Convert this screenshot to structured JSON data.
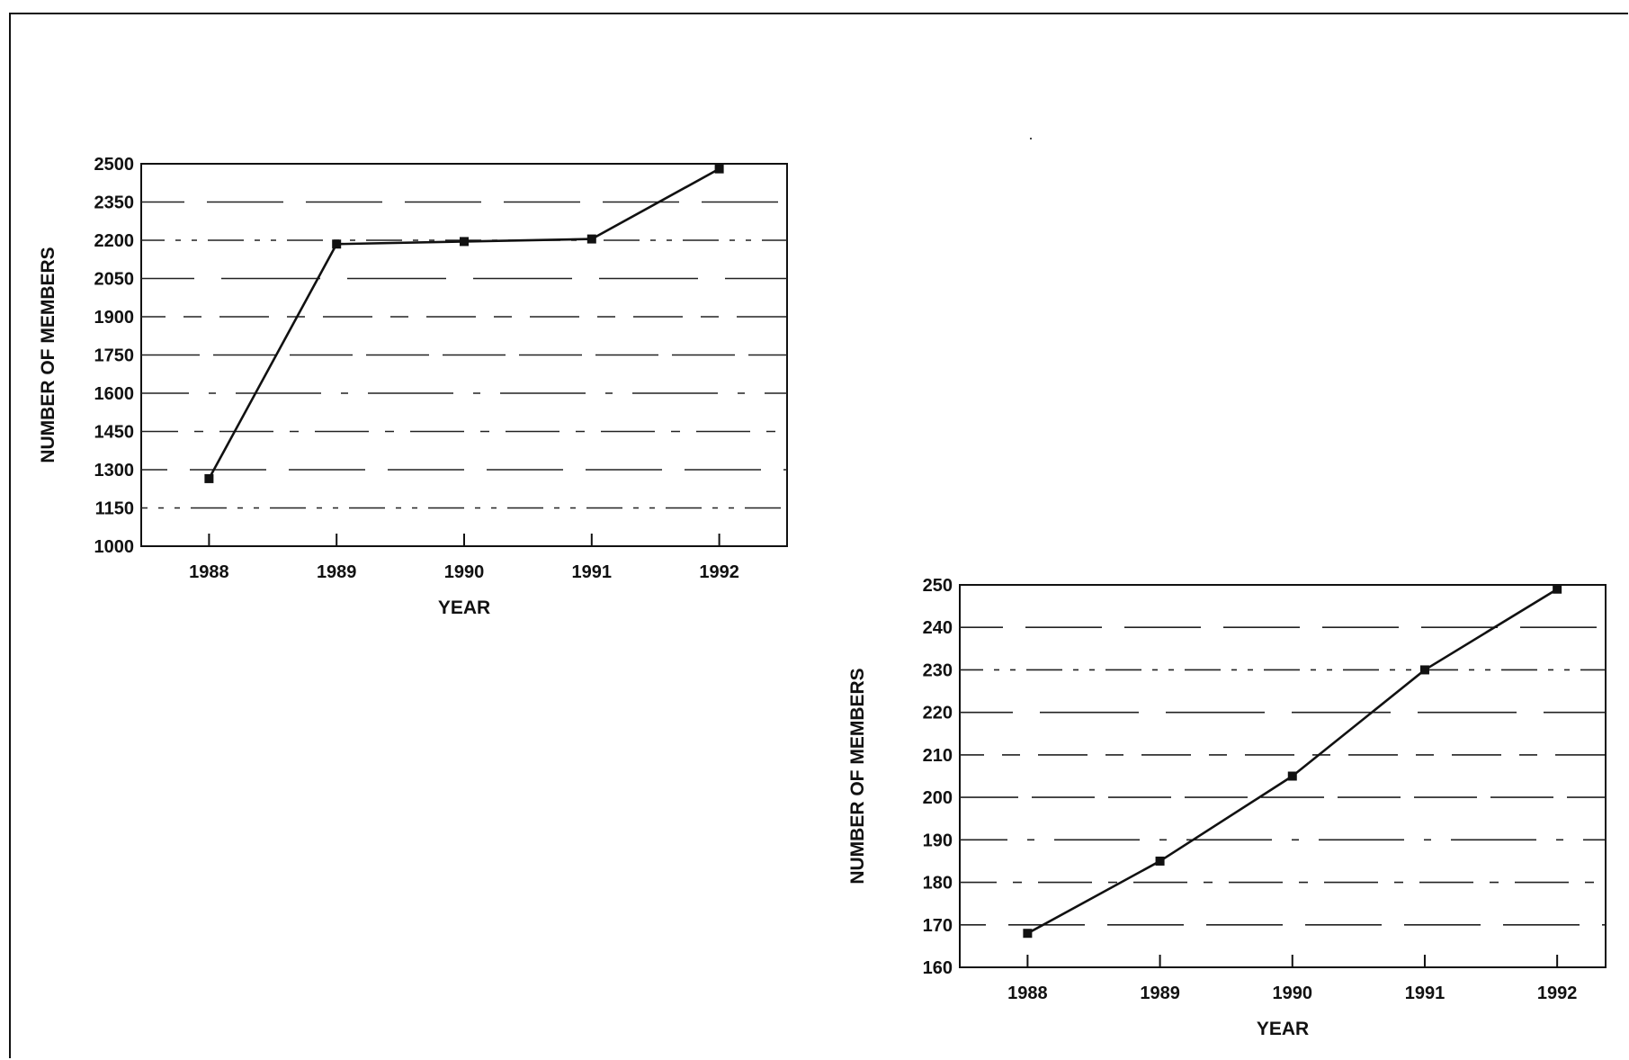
{
  "chart_data": [
    {
      "type": "line",
      "xlabel": "YEAR",
      "ylabel": "NUMBER OF MEMBERS",
      "categories": [
        "1988",
        "1989",
        "1990",
        "1991",
        "1992"
      ],
      "yticks": [
        "2500",
        "2350",
        "2200",
        "2050",
        "1900",
        "1750",
        "1600",
        "1450",
        "1300",
        "1150",
        "1000"
      ],
      "ylim": [
        1000,
        2500
      ],
      "series": [
        {
          "values": [
            1265,
            2185,
            2195,
            2205,
            2480
          ]
        }
      ],
      "grid": "horizontal dashed",
      "line_color": "#111111"
    },
    {
      "type": "line",
      "xlabel": "YEAR",
      "ylabel": "NUMBER OF MEMBERS",
      "categories": [
        "1988",
        "1989",
        "1990",
        "1991",
        "1992"
      ],
      "yticks": [
        "250",
        "240",
        "230",
        "220",
        "210",
        "200",
        "190",
        "180",
        "170",
        "160"
      ],
      "ylim": [
        160,
        250
      ],
      "series": [
        {
          "values": [
            168,
            185,
            205,
            230,
            249
          ]
        }
      ],
      "grid": "horizontal dashed",
      "line_color": "#111111"
    }
  ]
}
